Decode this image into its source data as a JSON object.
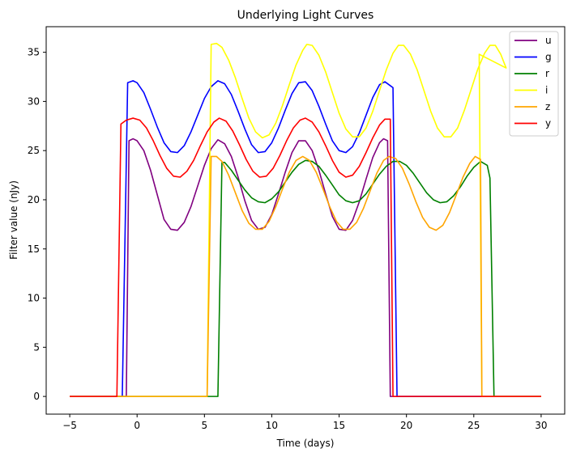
{
  "chart_data": {
    "type": "line",
    "title": "Underlying Light Curves",
    "xlabel": "Time (days)",
    "ylabel": "Filter value (nJy)",
    "xlim": [
      -6.75,
      31.75
    ],
    "ylim": [
      -1.8,
      37.6
    ],
    "xticks": [
      -5,
      0,
      5,
      10,
      15,
      20,
      25,
      30
    ],
    "yticks": [
      0,
      5,
      10,
      15,
      20,
      25,
      30,
      35
    ],
    "grid": false,
    "legend_position": "top-right",
    "series": [
      {
        "name": "u",
        "color": "#800080",
        "points": [
          [
            -5,
            0
          ],
          [
            -1.0,
            0
          ],
          [
            -0.8,
            0
          ],
          [
            -0.6,
            26.0
          ],
          [
            -0.3,
            26.2
          ],
          [
            0,
            26.0
          ],
          [
            0.5,
            25.0
          ],
          [
            1,
            23.0
          ],
          [
            1.5,
            20.5
          ],
          [
            2,
            18.0
          ],
          [
            2.5,
            17.0
          ],
          [
            3,
            16.9
          ],
          [
            3.5,
            17.7
          ],
          [
            4,
            19.3
          ],
          [
            4.5,
            21.4
          ],
          [
            5,
            23.5
          ],
          [
            5.5,
            25.2
          ],
          [
            6,
            26.1
          ],
          [
            6.5,
            25.7
          ],
          [
            7,
            24.4
          ],
          [
            7.5,
            22.3
          ],
          [
            8,
            19.9
          ],
          [
            8.5,
            17.9
          ],
          [
            9,
            17.0
          ],
          [
            9.5,
            17.2
          ],
          [
            10,
            18.5
          ],
          [
            10.5,
            20.6
          ],
          [
            11,
            22.8
          ],
          [
            11.5,
            24.8
          ],
          [
            12,
            26.0
          ],
          [
            12.5,
            26.0
          ],
          [
            13,
            25.0
          ],
          [
            13.5,
            23.0
          ],
          [
            14,
            20.6
          ],
          [
            14.5,
            18.3
          ],
          [
            15,
            17.0
          ],
          [
            15.5,
            16.9
          ],
          [
            16,
            17.9
          ],
          [
            16.5,
            19.8
          ],
          [
            17,
            22.1
          ],
          [
            17.5,
            24.3
          ],
          [
            18,
            25.8
          ],
          [
            18.3,
            26.2
          ],
          [
            18.6,
            26.0
          ],
          [
            18.8,
            0
          ],
          [
            19,
            0
          ],
          [
            30,
            0
          ]
        ]
      },
      {
        "name": "g",
        "color": "#0000ff",
        "points": [
          [
            -5,
            0
          ],
          [
            -1.1,
            0
          ],
          [
            -0.7,
            31.9
          ],
          [
            -0.3,
            32.1
          ],
          [
            0,
            31.9
          ],
          [
            0.5,
            30.9
          ],
          [
            1,
            29.2
          ],
          [
            1.5,
            27.4
          ],
          [
            2,
            25.8
          ],
          [
            2.5,
            24.9
          ],
          [
            3,
            24.8
          ],
          [
            3.5,
            25.5
          ],
          [
            4,
            26.9
          ],
          [
            4.5,
            28.6
          ],
          [
            5,
            30.3
          ],
          [
            5.5,
            31.5
          ],
          [
            6,
            32.1
          ],
          [
            6.5,
            31.8
          ],
          [
            7,
            30.7
          ],
          [
            7.5,
            29.0
          ],
          [
            8,
            27.2
          ],
          [
            8.5,
            25.6
          ],
          [
            9,
            24.8
          ],
          [
            9.5,
            24.9
          ],
          [
            10,
            25.8
          ],
          [
            10.5,
            27.3
          ],
          [
            11,
            29.1
          ],
          [
            11.5,
            30.8
          ],
          [
            12,
            31.9
          ],
          [
            12.5,
            32.0
          ],
          [
            13,
            31.1
          ],
          [
            13.5,
            29.5
          ],
          [
            14,
            27.7
          ],
          [
            14.5,
            26.0
          ],
          [
            15,
            25.0
          ],
          [
            15.5,
            24.8
          ],
          [
            16,
            25.4
          ],
          [
            16.5,
            26.8
          ],
          [
            17,
            28.6
          ],
          [
            17.5,
            30.4
          ],
          [
            18,
            31.7
          ],
          [
            18.4,
            32.0
          ],
          [
            18.8,
            31.6
          ],
          [
            19.0,
            31.4
          ],
          [
            19.3,
            0
          ],
          [
            30,
            0
          ]
        ]
      },
      {
        "name": "r",
        "color": "#008000",
        "points": [
          [
            -5,
            0
          ],
          [
            5.5,
            0
          ],
          [
            6.0,
            0
          ],
          [
            6.3,
            23.8
          ],
          [
            6.5,
            23.8
          ],
          [
            7,
            23.0
          ],
          [
            7.5,
            22.0
          ],
          [
            8,
            21.0
          ],
          [
            8.5,
            20.2
          ],
          [
            9,
            19.8
          ],
          [
            9.5,
            19.7
          ],
          [
            10,
            20.1
          ],
          [
            10.5,
            20.8
          ],
          [
            11,
            21.8
          ],
          [
            11.5,
            22.8
          ],
          [
            12,
            23.6
          ],
          [
            12.5,
            24.0
          ],
          [
            13,
            23.9
          ],
          [
            13.5,
            23.4
          ],
          [
            14,
            22.5
          ],
          [
            14.5,
            21.5
          ],
          [
            15,
            20.5
          ],
          [
            15.5,
            19.9
          ],
          [
            16,
            19.7
          ],
          [
            16.5,
            19.9
          ],
          [
            17,
            20.6
          ],
          [
            17.5,
            21.6
          ],
          [
            18,
            22.6
          ],
          [
            18.5,
            23.4
          ],
          [
            19,
            23.9
          ],
          [
            19.5,
            23.9
          ],
          [
            20,
            23.5
          ],
          [
            20.5,
            22.7
          ],
          [
            21,
            21.7
          ],
          [
            21.5,
            20.7
          ],
          [
            22,
            20.0
          ],
          [
            22.5,
            19.7
          ],
          [
            23,
            19.8
          ],
          [
            23.5,
            20.4
          ],
          [
            24,
            21.3
          ],
          [
            24.5,
            22.4
          ],
          [
            25,
            23.3
          ],
          [
            25.5,
            23.9
          ],
          [
            26,
            23.5
          ],
          [
            26.2,
            22.2
          ],
          [
            26.5,
            0
          ],
          [
            30,
            0
          ]
        ]
      },
      {
        "name": "i",
        "color": "#ffff00",
        "points": [
          [
            -5,
            0
          ],
          [
            5.2,
            0
          ],
          [
            5.5,
            35.8
          ],
          [
            5.9,
            35.9
          ],
          [
            6.3,
            35.5
          ],
          [
            6.8,
            34.2
          ],
          [
            7.3,
            32.4
          ],
          [
            7.8,
            30.3
          ],
          [
            8.3,
            28.3
          ],
          [
            8.8,
            26.9
          ],
          [
            9.3,
            26.3
          ],
          [
            9.8,
            26.6
          ],
          [
            10.3,
            27.8
          ],
          [
            10.8,
            29.6
          ],
          [
            11.3,
            31.7
          ],
          [
            11.8,
            33.7
          ],
          [
            12.3,
            35.2
          ],
          [
            12.6,
            35.8
          ],
          [
            13,
            35.7
          ],
          [
            13.5,
            34.7
          ],
          [
            14,
            33.0
          ],
          [
            14.5,
            30.9
          ],
          [
            15,
            28.8
          ],
          [
            15.5,
            27.2
          ],
          [
            16,
            26.4
          ],
          [
            16.5,
            26.4
          ],
          [
            17,
            27.3
          ],
          [
            17.5,
            29.0
          ],
          [
            18,
            31.1
          ],
          [
            18.5,
            33.2
          ],
          [
            19,
            34.9
          ],
          [
            19.4,
            35.7
          ],
          [
            19.8,
            35.7
          ],
          [
            20.3,
            34.8
          ],
          [
            20.8,
            33.2
          ],
          [
            21.3,
            31.1
          ],
          [
            21.8,
            29.0
          ],
          [
            22.3,
            27.3
          ],
          [
            22.8,
            26.4
          ],
          [
            23.3,
            26.4
          ],
          [
            23.8,
            27.3
          ],
          [
            24.3,
            29.1
          ],
          [
            24.8,
            31.2
          ],
          [
            25.3,
            33.3
          ],
          [
            25.8,
            34.9
          ],
          [
            26.2,
            35.7
          ],
          [
            26.6,
            35.7
          ],
          [
            27.0,
            34.8
          ],
          [
            27.4,
            33.4
          ],
          [
            25.4,
            34.8
          ],
          [
            25.6,
            0
          ],
          [
            30,
            0
          ]
        ]
      },
      {
        "name": "z",
        "color": "#ffa500",
        "points": [
          [
            -5,
            0
          ],
          [
            5.2,
            0
          ],
          [
            5.5,
            24.4
          ],
          [
            5.9,
            24.4
          ],
          [
            6.3,
            23.9
          ],
          [
            6.8,
            22.5
          ],
          [
            7.3,
            20.7
          ],
          [
            7.8,
            18.9
          ],
          [
            8.3,
            17.6
          ],
          [
            8.8,
            17.0
          ],
          [
            9.3,
            17.0
          ],
          [
            9.8,
            17.8
          ],
          [
            10.3,
            19.3
          ],
          [
            10.8,
            21.1
          ],
          [
            11.3,
            22.8
          ],
          [
            11.8,
            24.0
          ],
          [
            12.3,
            24.4
          ],
          [
            12.8,
            24.0
          ],
          [
            13.3,
            22.8
          ],
          [
            13.8,
            21.1
          ],
          [
            14.3,
            19.3
          ],
          [
            14.8,
            17.8
          ],
          [
            15.3,
            17.0
          ],
          [
            15.8,
            17.0
          ],
          [
            16.3,
            17.7
          ],
          [
            16.8,
            19.1
          ],
          [
            17.3,
            20.9
          ],
          [
            17.8,
            22.7
          ],
          [
            18.3,
            24.0
          ],
          [
            18.7,
            24.4
          ],
          [
            19.2,
            24.2
          ],
          [
            19.7,
            23.2
          ],
          [
            20.2,
            21.6
          ],
          [
            20.7,
            19.8
          ],
          [
            21.2,
            18.2
          ],
          [
            21.7,
            17.2
          ],
          [
            22.2,
            16.9
          ],
          [
            22.7,
            17.4
          ],
          [
            23.2,
            18.7
          ],
          [
            23.7,
            20.5
          ],
          [
            24.2,
            22.3
          ],
          [
            24.7,
            23.7
          ],
          [
            25.1,
            24.4
          ],
          [
            25.5,
            24.1
          ],
          [
            25.6,
            0
          ],
          [
            30,
            0
          ]
        ]
      },
      {
        "name": "y",
        "color": "#ff0000",
        "points": [
          [
            -5,
            0
          ],
          [
            -1.5,
            0
          ],
          [
            -1.2,
            27.7
          ],
          [
            -0.8,
            28.1
          ],
          [
            -0.3,
            28.3
          ],
          [
            0.2,
            28.1
          ],
          [
            0.7,
            27.3
          ],
          [
            1.2,
            26.0
          ],
          [
            1.7,
            24.5
          ],
          [
            2.2,
            23.2
          ],
          [
            2.7,
            22.4
          ],
          [
            3.2,
            22.3
          ],
          [
            3.7,
            22.9
          ],
          [
            4.2,
            24.0
          ],
          [
            4.7,
            25.5
          ],
          [
            5.2,
            26.9
          ],
          [
            5.7,
            27.9
          ],
          [
            6.1,
            28.3
          ],
          [
            6.6,
            28.0
          ],
          [
            7.1,
            27.0
          ],
          [
            7.6,
            25.6
          ],
          [
            8.1,
            24.1
          ],
          [
            8.6,
            22.9
          ],
          [
            9.1,
            22.3
          ],
          [
            9.6,
            22.4
          ],
          [
            10.1,
            23.2
          ],
          [
            10.6,
            24.5
          ],
          [
            11.1,
            26.0
          ],
          [
            11.6,
            27.3
          ],
          [
            12.1,
            28.1
          ],
          [
            12.5,
            28.3
          ],
          [
            13,
            27.9
          ],
          [
            13.5,
            26.9
          ],
          [
            14,
            25.5
          ],
          [
            14.5,
            24.0
          ],
          [
            15,
            22.8
          ],
          [
            15.5,
            22.3
          ],
          [
            16,
            22.5
          ],
          [
            16.5,
            23.4
          ],
          [
            17,
            24.8
          ],
          [
            17.5,
            26.3
          ],
          [
            18,
            27.6
          ],
          [
            18.4,
            28.2
          ],
          [
            18.8,
            28.2
          ],
          [
            19.0,
            0
          ],
          [
            30,
            0
          ]
        ]
      }
    ]
  }
}
